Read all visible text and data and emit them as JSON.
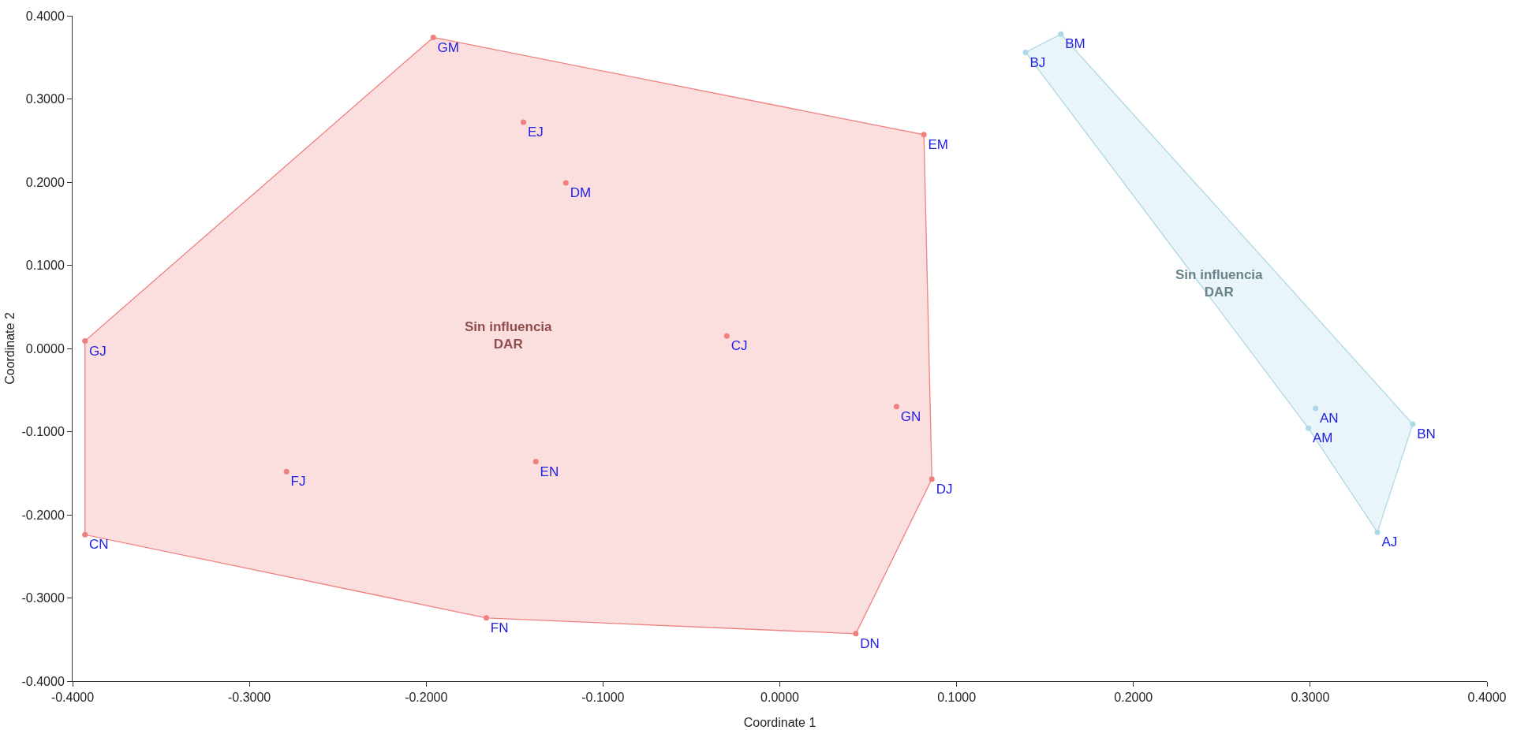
{
  "chart_data": {
    "type": "scatter",
    "xlabel": "Coordinate 1",
    "ylabel": "Coordinate 2",
    "xlim": [
      -0.4,
      0.4
    ],
    "xticks": [
      {
        "value": -0.4,
        "label": "-0.4000"
      },
      {
        "value": -0.3,
        "label": "-0.3000"
      },
      {
        "value": -0.2,
        "label": "-0.2000"
      },
      {
        "value": -0.1,
        "label": "-0.1000"
      },
      {
        "value": 0,
        "label": "0.0000"
      },
      {
        "value": 0.1,
        "label": "0.1000"
      },
      {
        "value": 0.2,
        "label": "0.2000"
      },
      {
        "value": 0.3,
        "label": "0.3000"
      },
      {
        "value": 0.4,
        "label": "0.4000"
      }
    ],
    "ylim": [
      -0.4,
      0.4
    ],
    "yticks": [
      {
        "value": -0.4,
        "label": "-0.4000"
      },
      {
        "value": -0.3,
        "label": "-0.3000"
      },
      {
        "value": -0.2,
        "label": "-0.2000"
      },
      {
        "value": -0.1,
        "label": "-0.1000"
      },
      {
        "value": 0,
        "label": "0.0000"
      },
      {
        "value": 0.1,
        "label": "0.1000"
      },
      {
        "value": 0.2,
        "label": "0.2000"
      },
      {
        "value": 0.3,
        "label": "0.3000"
      },
      {
        "value": 0.4,
        "label": "0.4000"
      }
    ],
    "grid": false,
    "marker": "circle",
    "series": [
      {
        "type": "area",
        "marker": "none",
        "color": "#f08080",
        "x": [
          -0.196,
          0.0815,
          0.086,
          0.043,
          -0.166,
          -0.393,
          -0.393,
          -0.196
        ],
        "values": [
          0.374,
          0.257,
          -0.157,
          -0.343,
          -0.324,
          -0.224,
          0.009,
          0.374
        ]
      },
      {
        "color": "#f08080",
        "x": [
          -0.196,
          -0.145,
          -0.121,
          0.0815,
          -0.393,
          -0.03,
          0.066,
          -0.279,
          -0.138,
          0.086,
          -0.393,
          -0.166,
          0.043
        ],
        "values": [
          0.374,
          0.272,
          0.199,
          0.257,
          0.009,
          0.015,
          -0.07,
          -0.148,
          -0.136,
          -0.157,
          -0.224,
          -0.324,
          -0.343
        ],
        "value_labels": [
          "GM",
          "EJ",
          "DM",
          "EM",
          "GJ",
          "CJ",
          "GN",
          "FJ",
          "EN",
          "DJ",
          "CN",
          "FN",
          "DN"
        ]
      },
      {
        "type": "area",
        "marker": "none",
        "color": "#add8e6",
        "x": [
          0.139,
          0.299,
          0.338,
          0.358,
          0.159,
          0.139
        ],
        "values": [
          0.356,
          -0.096,
          -0.221,
          -0.091,
          0.378,
          0.356
        ]
      },
      {
        "color": "#add8e6",
        "x": [
          0.159,
          0.139,
          0.303,
          0.299,
          0.358,
          0.338
        ],
        "values": [
          0.378,
          0.356,
          -0.072,
          -0.096,
          -0.091,
          -0.221
        ],
        "value_labels": [
          "BM",
          "BJ",
          "AN",
          "AM",
          "BN",
          "AJ"
        ]
      }
    ],
    "annotations": [
      "Sin influencia\nDAR",
      "Sin influencia\nDAR"
    ]
  }
}
